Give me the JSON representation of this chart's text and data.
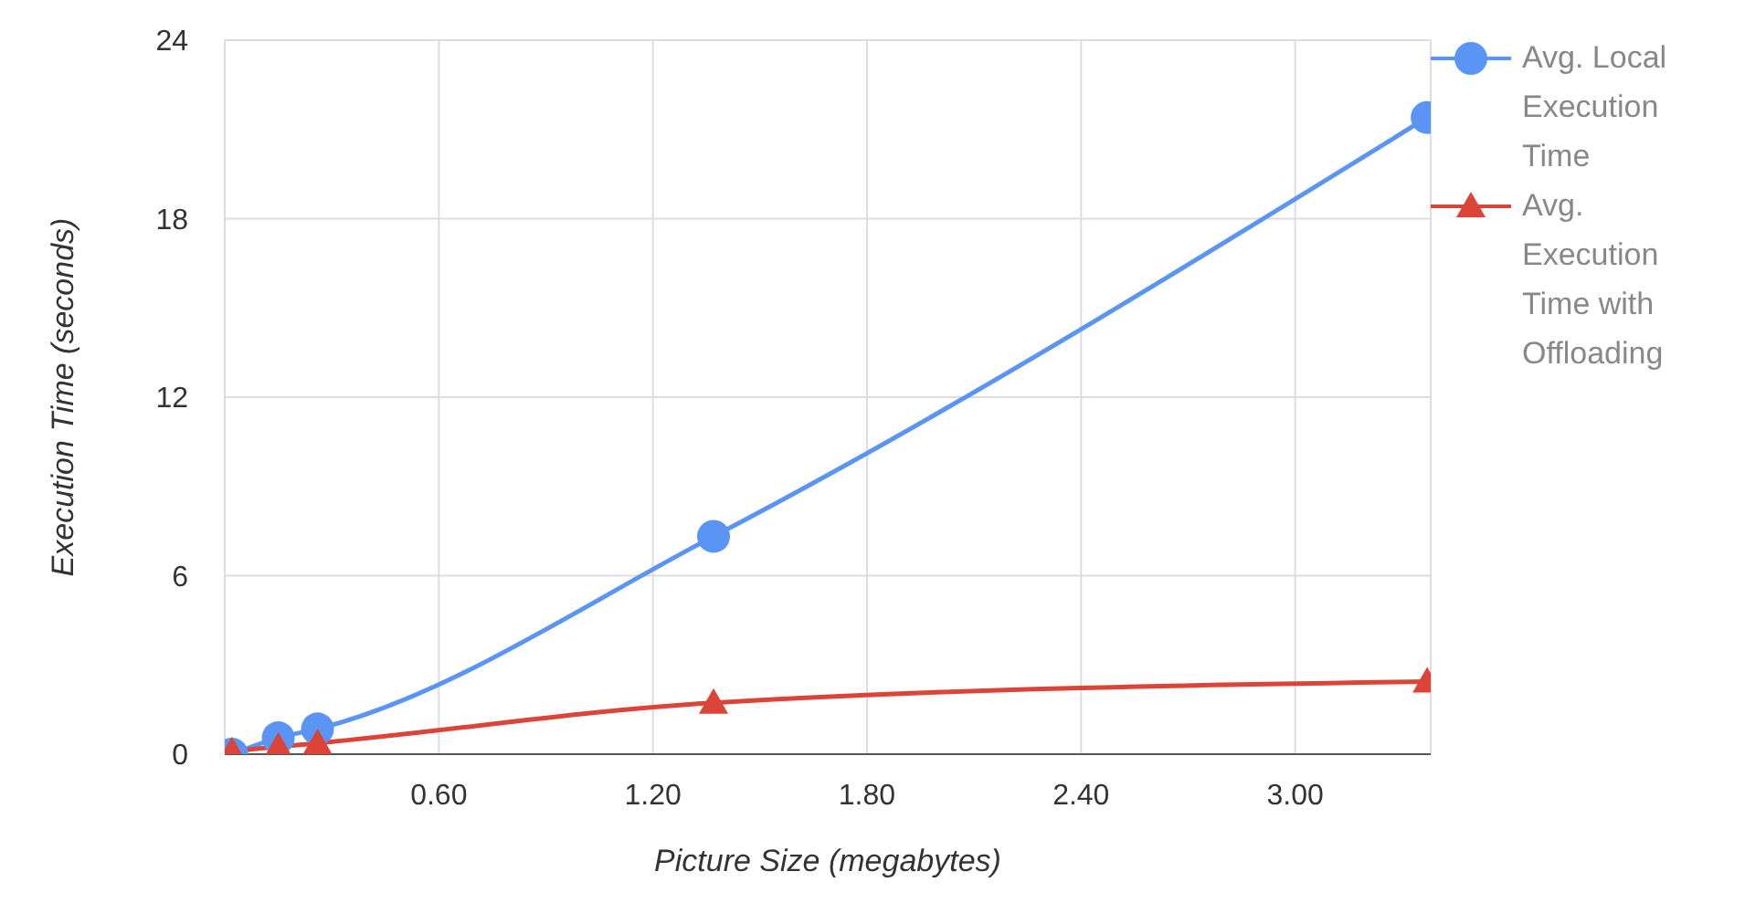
{
  "chart_data": {
    "type": "line",
    "xlabel": "Picture Size (megabytes)",
    "ylabel": "Execution Time (seconds)",
    "x": [
      0.02,
      0.15,
      0.26,
      1.37,
      3.37
    ],
    "series": [
      {
        "name": "Avg. Local Execution Time",
        "color": "#5a95f5",
        "marker": "circle",
        "values": [
          0,
          0.55,
          0.85,
          7.32,
          21.4
        ]
      },
      {
        "name": "Avg. Execution Time with Offloading",
        "color": "#db4437",
        "marker": "triangle",
        "values": [
          0.1,
          0.25,
          0.37,
          1.73,
          2.44
        ]
      }
    ],
    "xlim": [
      0,
      3.38
    ],
    "xticks": [
      {
        "value": 0.6,
        "label": "0.60"
      },
      {
        "value": 1.2,
        "label": "1.20"
      },
      {
        "value": 1.8,
        "label": "1.80"
      },
      {
        "value": 2.4,
        "label": "2.40"
      },
      {
        "value": 3.0,
        "label": "3.00"
      }
    ],
    "ylim": [
      0,
      24
    ],
    "yticks": [
      0,
      6,
      12,
      18,
      24
    ],
    "grid": true,
    "legend": "top right"
  }
}
